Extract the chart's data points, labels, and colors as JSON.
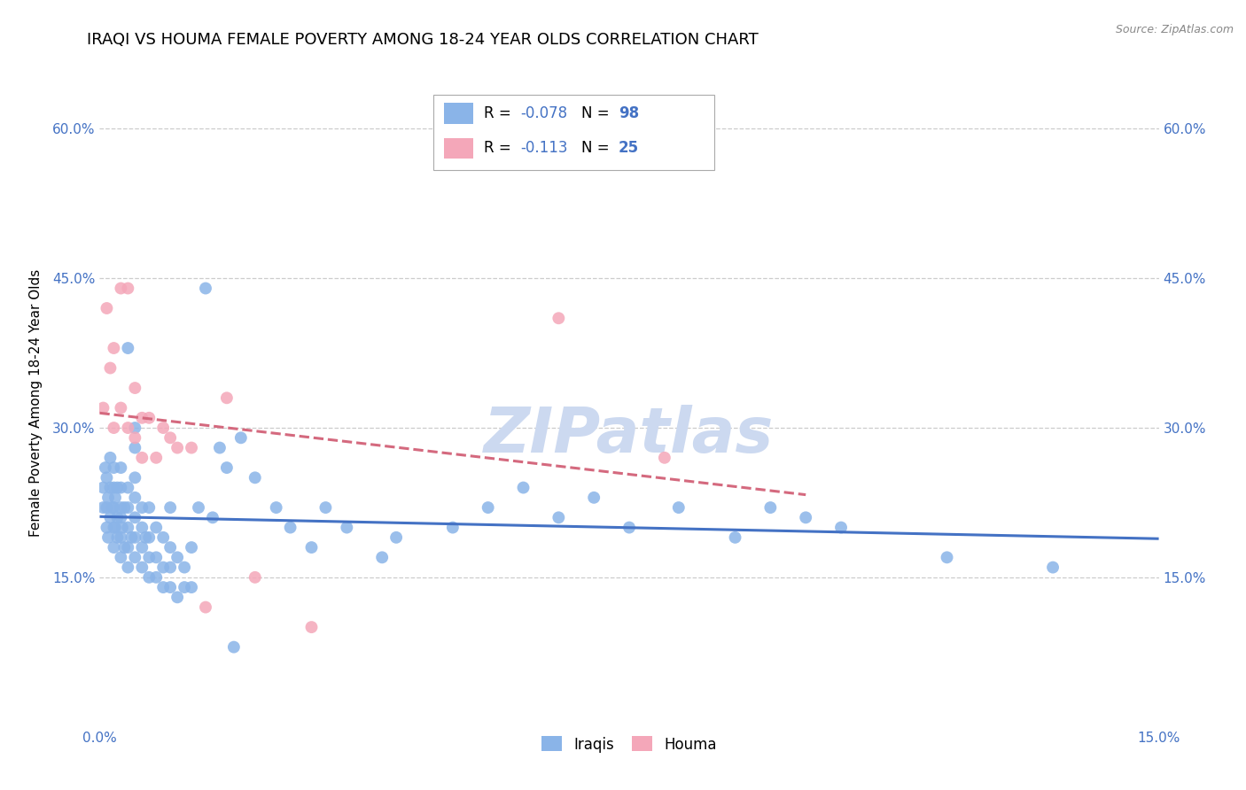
{
  "title": "IRAQI VS HOUMA FEMALE POVERTY AMONG 18-24 YEAR OLDS CORRELATION CHART",
  "source": "Source: ZipAtlas.com",
  "ylabel": "Female Poverty Among 18-24 Year Olds",
  "xlim": [
    0.0,
    0.15
  ],
  "ylim": [
    0.0,
    0.65
  ],
  "xticks": [
    0.0,
    0.15
  ],
  "xticklabels": [
    "0.0%",
    "15.0%"
  ],
  "yticks": [
    0.15,
    0.3,
    0.45,
    0.6
  ],
  "yticklabels": [
    "15.0%",
    "30.0%",
    "45.0%",
    "60.0%"
  ],
  "iraqi_color": "#8ab4e8",
  "houma_color": "#f4a7b9",
  "iraqi_R": -0.078,
  "iraqi_N": 98,
  "houma_R": -0.113,
  "houma_N": 25,
  "iraqi_line_color": "#4472c4",
  "houma_line_color": "#d4697e",
  "watermark": "ZIPatlas",
  "legend_labels": [
    "Iraqis",
    "Houma"
  ],
  "iraqi_x": [
    0.0005,
    0.0005,
    0.0008,
    0.001,
    0.001,
    0.001,
    0.0012,
    0.0012,
    0.0015,
    0.0015,
    0.0015,
    0.0018,
    0.002,
    0.002,
    0.002,
    0.002,
    0.002,
    0.0022,
    0.0022,
    0.0025,
    0.0025,
    0.0025,
    0.003,
    0.003,
    0.003,
    0.003,
    0.003,
    0.003,
    0.0032,
    0.0035,
    0.0035,
    0.004,
    0.004,
    0.004,
    0.004,
    0.004,
    0.004,
    0.0045,
    0.005,
    0.005,
    0.005,
    0.005,
    0.005,
    0.005,
    0.005,
    0.006,
    0.006,
    0.006,
    0.006,
    0.0065,
    0.007,
    0.007,
    0.007,
    0.007,
    0.008,
    0.008,
    0.008,
    0.009,
    0.009,
    0.009,
    0.01,
    0.01,
    0.01,
    0.01,
    0.011,
    0.011,
    0.012,
    0.012,
    0.013,
    0.013,
    0.014,
    0.015,
    0.016,
    0.017,
    0.018,
    0.019,
    0.02,
    0.022,
    0.025,
    0.027,
    0.03,
    0.032,
    0.035,
    0.04,
    0.042,
    0.05,
    0.055,
    0.06,
    0.065,
    0.07,
    0.075,
    0.082,
    0.09,
    0.095,
    0.1,
    0.105,
    0.12,
    0.135
  ],
  "iraqi_y": [
    0.24,
    0.22,
    0.26,
    0.2,
    0.22,
    0.25,
    0.19,
    0.23,
    0.21,
    0.24,
    0.27,
    0.22,
    0.18,
    0.2,
    0.22,
    0.24,
    0.26,
    0.2,
    0.23,
    0.19,
    0.21,
    0.24,
    0.17,
    0.19,
    0.21,
    0.22,
    0.24,
    0.26,
    0.2,
    0.18,
    0.22,
    0.16,
    0.18,
    0.2,
    0.22,
    0.24,
    0.38,
    0.19,
    0.17,
    0.19,
    0.21,
    0.23,
    0.25,
    0.28,
    0.3,
    0.16,
    0.18,
    0.2,
    0.22,
    0.19,
    0.15,
    0.17,
    0.19,
    0.22,
    0.15,
    0.17,
    0.2,
    0.14,
    0.16,
    0.19,
    0.14,
    0.16,
    0.18,
    0.22,
    0.13,
    0.17,
    0.14,
    0.16,
    0.14,
    0.18,
    0.22,
    0.44,
    0.21,
    0.28,
    0.26,
    0.08,
    0.29,
    0.25,
    0.22,
    0.2,
    0.18,
    0.22,
    0.2,
    0.17,
    0.19,
    0.2,
    0.22,
    0.24,
    0.21,
    0.23,
    0.2,
    0.22,
    0.19,
    0.22,
    0.21,
    0.2,
    0.17,
    0.16
  ],
  "houma_x": [
    0.0005,
    0.001,
    0.0015,
    0.002,
    0.002,
    0.003,
    0.003,
    0.004,
    0.004,
    0.005,
    0.005,
    0.006,
    0.006,
    0.007,
    0.008,
    0.009,
    0.01,
    0.011,
    0.013,
    0.015,
    0.018,
    0.022,
    0.03,
    0.065,
    0.08
  ],
  "houma_y": [
    0.32,
    0.42,
    0.36,
    0.3,
    0.38,
    0.32,
    0.44,
    0.3,
    0.44,
    0.29,
    0.34,
    0.27,
    0.31,
    0.31,
    0.27,
    0.3,
    0.29,
    0.28,
    0.28,
    0.12,
    0.33,
    0.15,
    0.1,
    0.41,
    0.27
  ],
  "background_color": "#ffffff",
  "grid_color": "#cccccc",
  "title_fontsize": 13,
  "axis_fontsize": 11,
  "tick_fontsize": 11,
  "tick_color": "#4472c4",
  "watermark_color": "#ccd9f0",
  "watermark_fontsize": 52
}
